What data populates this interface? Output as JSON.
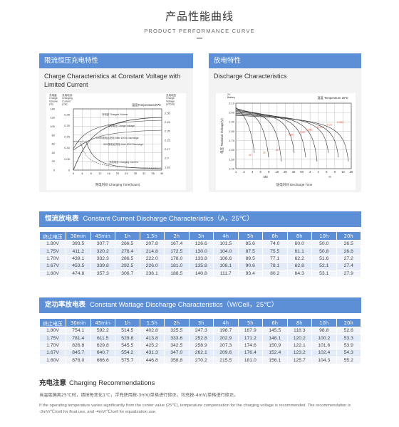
{
  "header": {
    "title": "产品性能曲线",
    "subtitle": "PRODUCT PERFORMANCE CURVE"
  },
  "charge_panel": {
    "title_zh": "限流恒压充电特性",
    "title_en": "Charge Characteristics at Constant Voltage with Limited Current",
    "axis_labels": {
      "charge_volume": "充电量\nCharge\nVolume\n(%)",
      "charging_current": "充电电流\nCharging\nCurrent\n(CA)",
      "charge_voltage": "充电电压\nCharge\nVoltage\n(V/Cell)",
      "xlabel": "充电时间 Charging Time(hours)",
      "temperature": "温度Temperature25℃"
    },
    "annotations": [
      "充电量 Charged Volume",
      "充电电压 Charge Voltage",
      "100%放电后充电 After 100% Discharge",
      "50%放电后充电 After 50% Discharge",
      "充电电流 Charging Current"
    ],
    "left_ticks_vol": [
      "140",
      "120",
      "100",
      "80",
      "60",
      "40",
      "20",
      "0"
    ],
    "left_ticks_cur": [
      "0.25",
      "0.20",
      "0.15",
      "0.10",
      "0.05",
      "0"
    ],
    "right_ticks": [
      "2.55",
      "2.45",
      "2.35",
      "2.25",
      "2.17",
      "2.0",
      "1.83"
    ],
    "x_ticks": [
      "0",
      "4",
      "8",
      "12",
      "16",
      "20",
      "24",
      "28",
      "32",
      "36",
      "40"
    ]
  },
  "discharge_panel": {
    "title_zh": "放电特性",
    "title_en": "Discharge Characteristics",
    "axis_labels": {
      "ylabel": "电压 Terminal Voltage(V)",
      "xlabel": "放电时间 Discharge Time",
      "temperature": "温度 Temperature 25℃",
      "battery": "2V\nBattery",
      "min": "Min",
      "h": "H"
    },
    "y_ticks": [
      "2.10",
      "2.00",
      "1.90",
      "1.80",
      "1.70",
      "1.60",
      "1.50",
      "1.40"
    ],
    "x_ticks": [
      "1",
      "2",
      "4",
      "6",
      "8",
      "10",
      "20",
      "40",
      "60",
      "2",
      "4",
      "6",
      "8",
      "10",
      "20"
    ],
    "curve_labels": [
      "3C",
      "2C",
      "1C",
      "0.6C",
      "0.4C",
      "0.25C",
      "0.17C",
      "0.1C",
      "0.05C"
    ]
  },
  "current_table": {
    "title_zh": "恒流放电表",
    "title_en": "Constant Current Discharge Characteristics（A，25℃）",
    "headers": [
      "终止电压",
      "30min",
      "45min",
      "1h",
      "1.5h",
      "2h",
      "3h",
      "4h",
      "5h",
      "6h",
      "8h",
      "10h",
      "20h"
    ],
    "rows": [
      [
        "1.80V",
        "393.5",
        "307.7",
        "266.5",
        "207.8",
        "167.4",
        "126.6",
        "101.5",
        "85.6",
        "74.0",
        "60.0",
        "50.0",
        "26.5"
      ],
      [
        "1.75V",
        "411.2",
        "320.2",
        "276.4",
        "214.8",
        "172.5",
        "130.0",
        "104.0",
        "87.5",
        "75.5",
        "61.1",
        "50.8",
        "26.8"
      ],
      [
        "1.70V",
        "439.1",
        "332.3",
        "286.5",
        "222.0",
        "178.0",
        "133.8",
        "106.6",
        "89.5",
        "77.1",
        "62.2",
        "51.6",
        "27.2"
      ],
      [
        "1.67V",
        "453.5",
        "339.8",
        "292.5",
        "226.0",
        "181.0",
        "135.8",
        "108.1",
        "90.6",
        "78.1",
        "62.8",
        "52.1",
        "27.4"
      ],
      [
        "1.60V",
        "474.8",
        "357.3",
        "306.7",
        "236.1",
        "188.5",
        "140.8",
        "111.7",
        "93.4",
        "80.2",
        "64.3",
        "53.1",
        "27.9"
      ]
    ]
  },
  "wattage_table": {
    "title_zh": "定功率放电表",
    "title_en": "Constant Wattage Discharge Characteristics（W/Cell，25℃）",
    "headers": [
      "终止电压",
      "30min",
      "45min",
      "1h",
      "1.5h",
      "2h",
      "3h",
      "4h",
      "5h",
      "6h",
      "8h",
      "10h",
      "20h"
    ],
    "rows": [
      [
        "1.80V",
        "754.1",
        "592.2",
        "514.5",
        "402.8",
        "325.5",
        "247.3",
        "198.7",
        "167.9",
        "145.5",
        "118.3",
        "98.8",
        "52.6"
      ],
      [
        "1.75V",
        "781.4",
        "611.5",
        "529.8",
        "413.8",
        "333.6",
        "252.8",
        "202.9",
        "171.2",
        "148.1",
        "120.2",
        "100.2",
        "53.3"
      ],
      [
        "1.70V",
        "826.8",
        "629.8",
        "545.5",
        "425.2",
        "342.5",
        "258.9",
        "207.3",
        "174.6",
        "150.9",
        "122.1",
        "101.6",
        "53.9"
      ],
      [
        "1.67V",
        "845.7",
        "640.7",
        "554.2",
        "431.3",
        "347.0",
        "262.1",
        "209.6",
        "176.4",
        "152.4",
        "123.2",
        "102.4",
        "54.3"
      ],
      [
        "1.60V",
        "878.0",
        "666.6",
        "575.7",
        "446.8",
        "358.8",
        "270.2",
        "215.5",
        "181.0",
        "156.1",
        "125.7",
        "104.3",
        "55.2"
      ]
    ]
  },
  "charging": {
    "title_zh": "充电注意",
    "title_en": "Charging Recommendations",
    "text_zh": "当温度偏离25℃时，请按每变化1℃，浮充使用按-3mV/单格进行修正，均充按-4mV/单格进行修正。",
    "text_en": "If the operating temperature varies significantly from the center value (25℃), temperature compensation for the charging voltage is recommended. The recommendation is -3mV/℃/cell for float use, and -4mV/℃/cell for equalization use."
  },
  "colors": {
    "accent": "#5d8fd6",
    "row_dark": "#e2ebf7",
    "row_light": "#f1f5fb",
    "discharge_curve_label": "#e0492e"
  }
}
